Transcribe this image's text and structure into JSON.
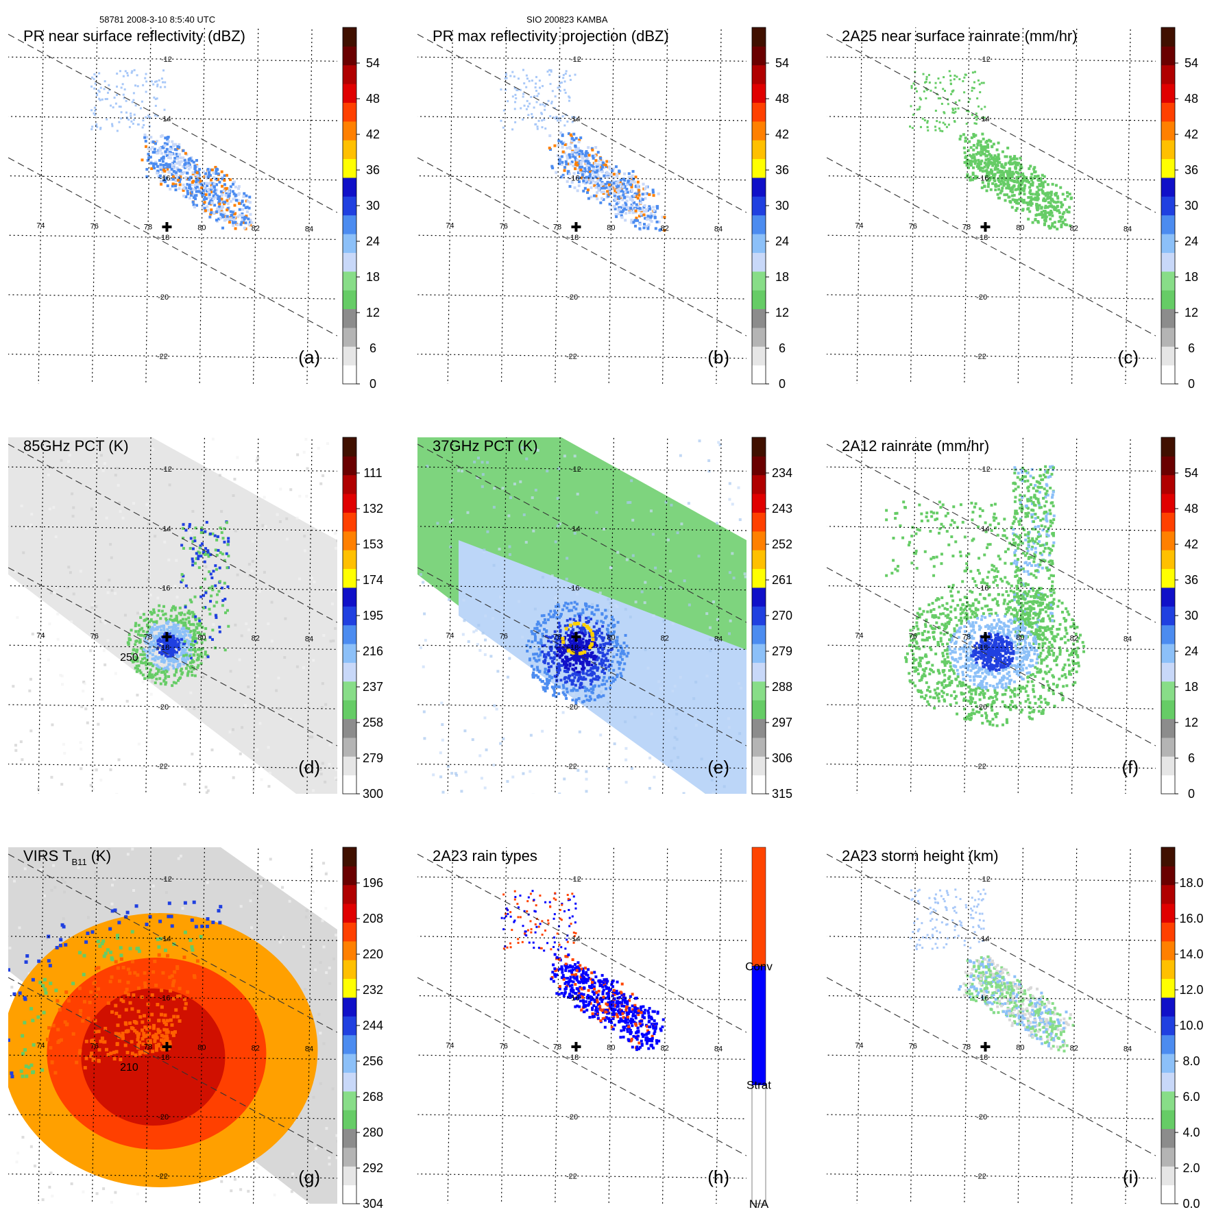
{
  "header": {
    "left": "58781 2008-3-10 8:5:40 UTC",
    "center": "SIO 200823 KAMBA"
  },
  "grid": {
    "lon_ticks": [
      "74",
      "76",
      "78",
      "80",
      "82",
      "84"
    ],
    "lat_ticks": [
      "-12",
      "-14",
      "-16",
      "-18",
      "-20",
      "-22"
    ],
    "lon_range": [
      73,
      85
    ],
    "lat_range": [
      -23,
      -11
    ],
    "storm_center": {
      "lon": 78.7,
      "lat": -17.65
    }
  },
  "chart_data": [
    {
      "type": "heatmap",
      "panel": "a",
      "title": "PR near surface reflectivity (dBZ)",
      "label": "(a)",
      "colorbar": {
        "ticks": [
          "0",
          "6",
          "12",
          "18",
          "24",
          "30",
          "36",
          "42",
          "48",
          "54"
        ],
        "range": [
          0,
          60
        ]
      },
      "swath": "pr"
    },
    {
      "type": "heatmap",
      "panel": "b",
      "title": "PR max reflectivity projection (dBZ)",
      "label": "(b)",
      "colorbar": {
        "ticks": [
          "0",
          "6",
          "12",
          "18",
          "24",
          "30",
          "36",
          "42",
          "48",
          "54"
        ],
        "range": [
          0,
          60
        ]
      },
      "swath": "pr"
    },
    {
      "type": "heatmap",
      "panel": "c",
      "title": "2A25 near surface rainrate (mm/hr)",
      "label": "(c)",
      "colorbar": {
        "ticks": [
          "0",
          "6",
          "12",
          "18",
          "24",
          "30",
          "36",
          "42",
          "48",
          "54"
        ],
        "range": [
          0,
          60
        ]
      },
      "swath": "pr"
    },
    {
      "type": "heatmap",
      "panel": "d",
      "title": "85GHz PCT (K)",
      "label": "(d)",
      "colorbar": {
        "ticks": [
          "300",
          "279",
          "258",
          "237",
          "216",
          "195",
          "174",
          "153",
          "132",
          "111"
        ],
        "range": [
          300,
          90
        ]
      },
      "contour_label": "250",
      "swath": "tmi"
    },
    {
      "type": "heatmap",
      "panel": "e",
      "title": "37GHz PCT (K)",
      "label": "(e)",
      "colorbar": {
        "ticks": [
          "315",
          "306",
          "297",
          "288",
          "279",
          "270",
          "261",
          "252",
          "243",
          "234"
        ],
        "range": [
          315,
          225
        ]
      },
      "swath": "tmi"
    },
    {
      "type": "heatmap",
      "panel": "f",
      "title": "2A12 rainrate (mm/hr)",
      "label": "(f)",
      "colorbar": {
        "ticks": [
          "0",
          "6",
          "12",
          "18",
          "24",
          "30",
          "36",
          "42",
          "48",
          "54"
        ],
        "range": [
          0,
          60
        ]
      },
      "swath": "pr"
    },
    {
      "type": "heatmap",
      "panel": "g",
      "title": "VIRS T",
      "title_sub": "B11",
      "title_tail": "(K)",
      "label": "(g)",
      "colorbar": {
        "ticks": [
          "304",
          "292",
          "280",
          "268",
          "256",
          "244",
          "232",
          "220",
          "208",
          "196"
        ],
        "range": [
          304,
          184
        ]
      },
      "contour_label": "210",
      "swath": "virs"
    },
    {
      "type": "heatmap",
      "panel": "h",
      "title": "2A23 rain types",
      "label": "(h)",
      "colorbar": {
        "categories": [
          "N/A",
          "Strat",
          "Conv"
        ]
      },
      "swath": "pr"
    },
    {
      "type": "heatmap",
      "panel": "i",
      "title": "2A23 storm height (km)",
      "label": "(i)",
      "colorbar": {
        "ticks": [
          "0.0",
          "2.0",
          "4.0",
          "6.0",
          "8.0",
          "10.0",
          "12.0",
          "14.0",
          "16.0",
          "18.0"
        ],
        "range": [
          0,
          20
        ]
      },
      "swath": "pr"
    }
  ],
  "colors": {
    "rain_scale": [
      "#ffffff",
      "#e6e6e6",
      "#b4b4b4",
      "#8c8c8c",
      "#66cc66",
      "#88dd88",
      "#c8d8f8",
      "#8cc0f8",
      "#4c8cf0",
      "#2040e0",
      "#1010c8",
      "#ffff00",
      "#ffc000",
      "#ff8000",
      "#ff4000",
      "#e00000",
      "#b00000",
      "#6a0000",
      "#401000"
    ],
    "rain_type": {
      "N/A": "#ffffff",
      "Strat": "#0000ff",
      "Conv": "#ff4400"
    }
  }
}
